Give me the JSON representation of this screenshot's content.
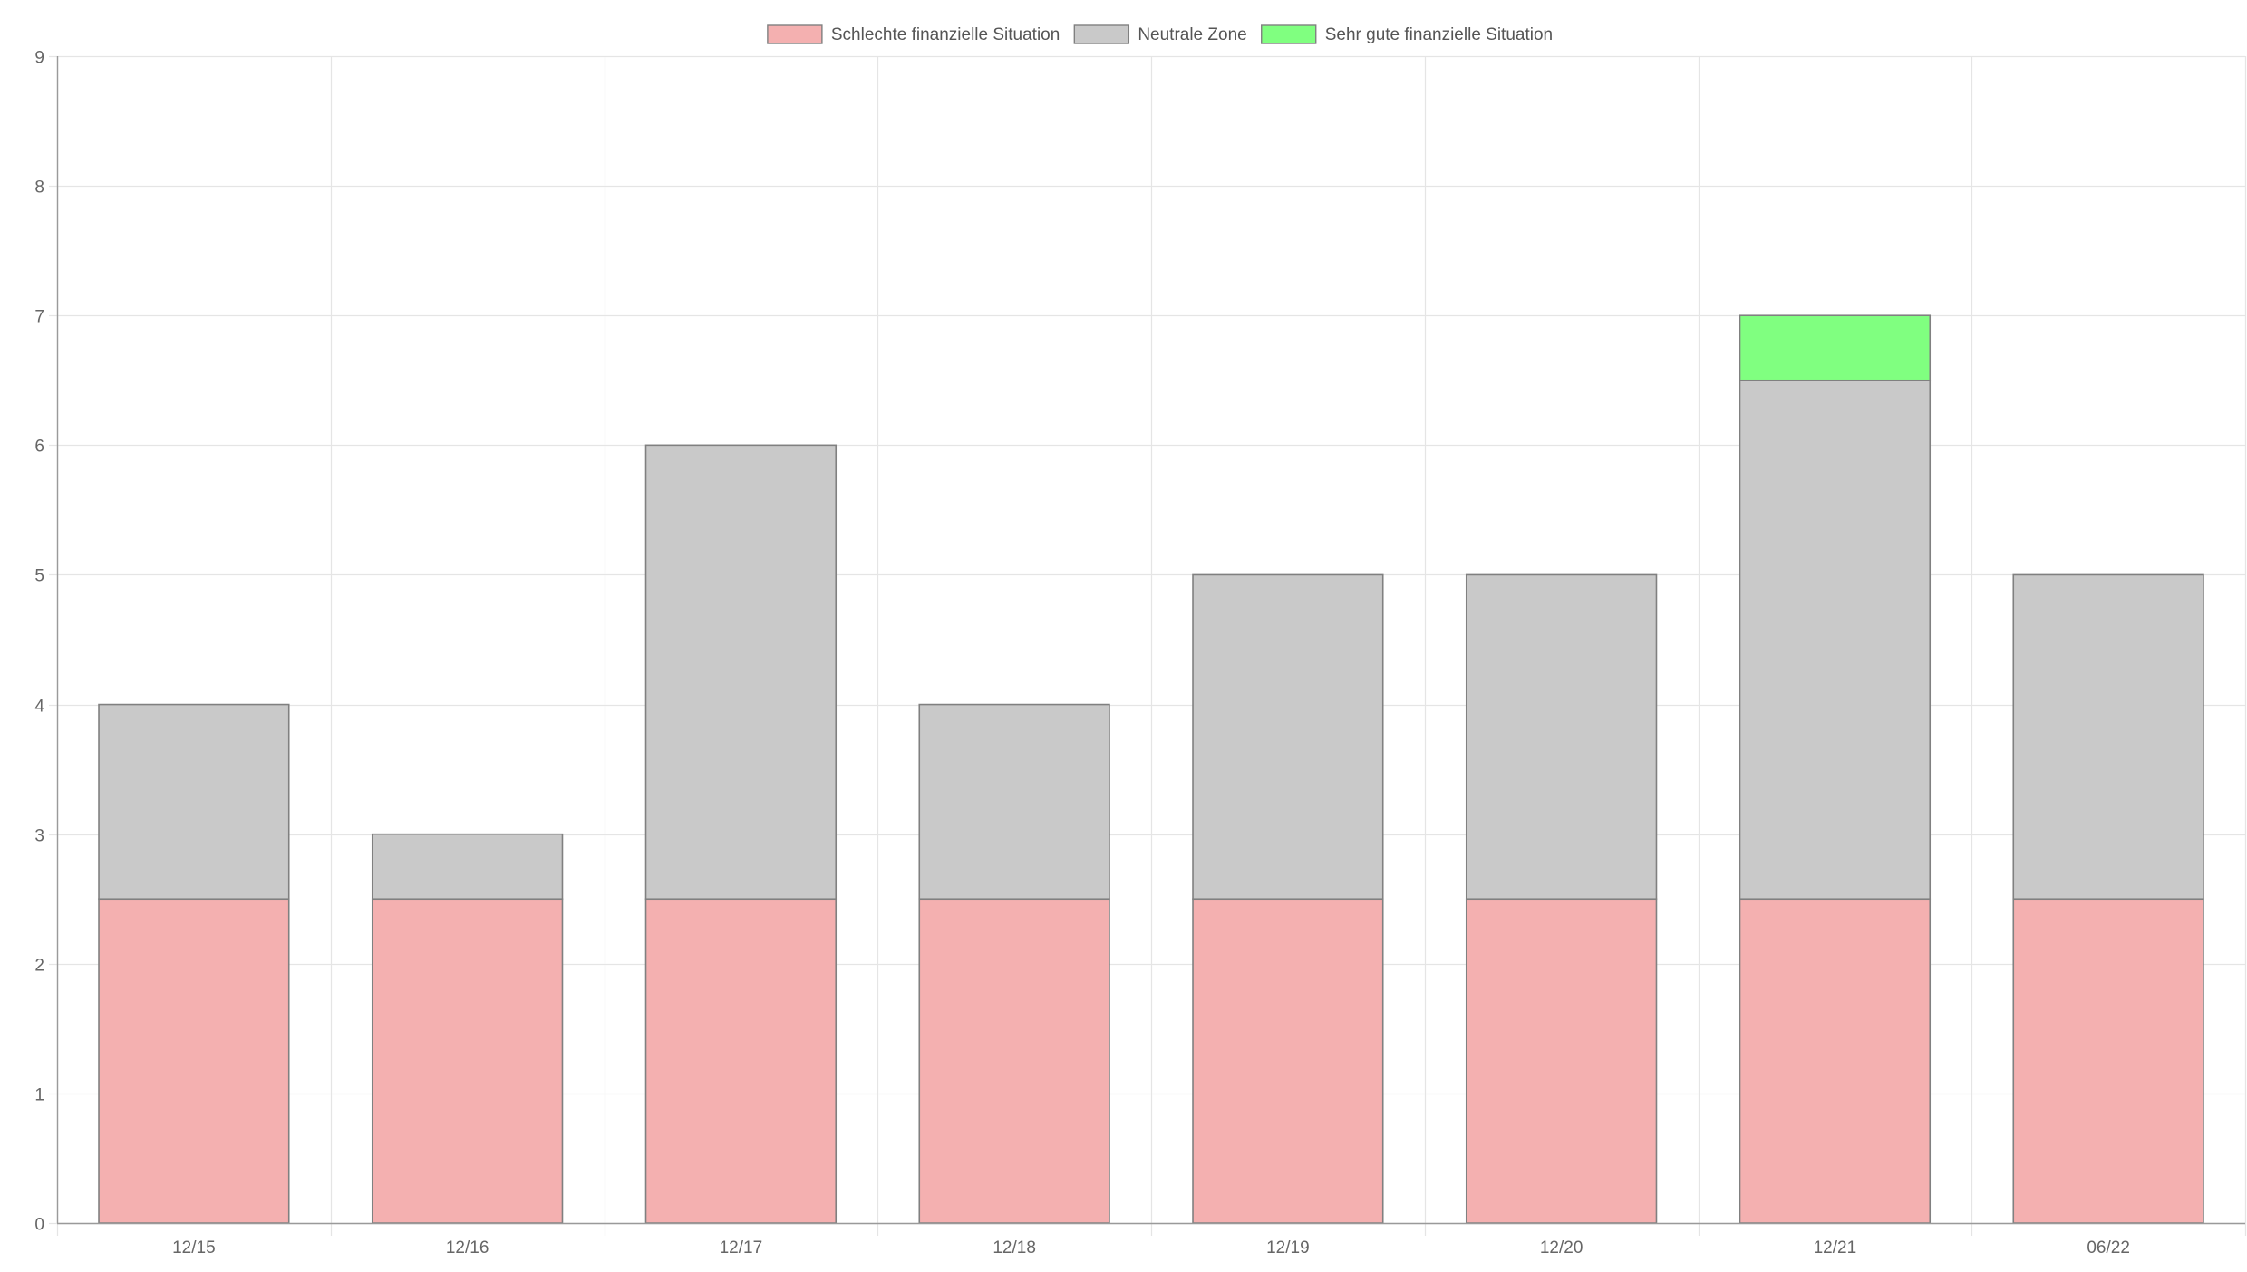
{
  "chart_data": {
    "type": "bar",
    "stacked": true,
    "categories": [
      "12/15",
      "12/16",
      "12/17",
      "12/18",
      "12/19",
      "12/20",
      "12/21",
      "06/22"
    ],
    "series": [
      {
        "name": "Schlechte finanzielle Situation",
        "color": "#f4b0b0",
        "values": [
          2.5,
          2.5,
          2.5,
          2.5,
          2.5,
          2.5,
          2.5,
          2.5
        ]
      },
      {
        "name": "Neutrale Zone",
        "color": "#c9c9c9",
        "values": [
          1.5,
          0.5,
          3.5,
          1.5,
          2.5,
          2.5,
          4,
          2.5
        ]
      },
      {
        "name": "Sehr gute finanzielle Situation",
        "color": "#80ff80",
        "values": [
          0,
          0,
          0,
          0,
          0,
          0,
          0.5,
          0
        ]
      }
    ],
    "ylim": [
      0,
      9
    ],
    "yticks": [
      0,
      1,
      2,
      3,
      4,
      5,
      6,
      7,
      8,
      9
    ],
    "grid": true,
    "legend_position": "top-center",
    "bar_border_color": "#808080",
    "grid_color": "#e5e5e5",
    "axis_color": "#9a9a9a"
  }
}
